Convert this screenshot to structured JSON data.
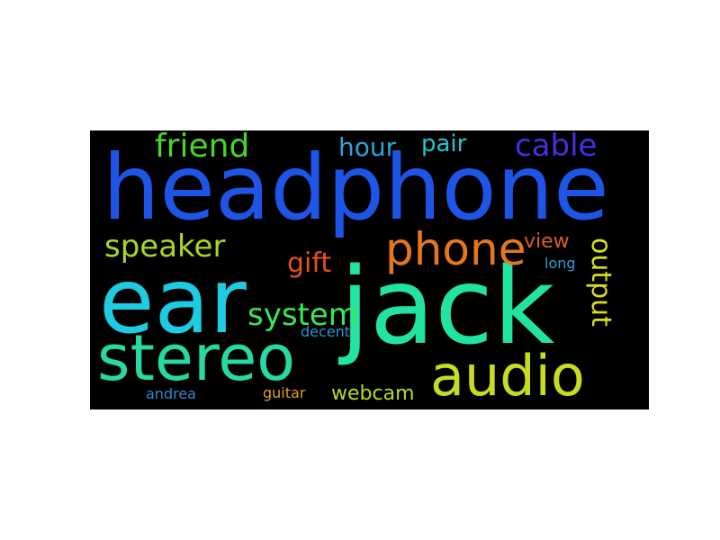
{
  "background_color": "#000000",
  "words": [
    {
      "text": "headphone",
      "color": "#1f55e6"
    },
    {
      "text": "ear",
      "color": "#1ecbe1"
    },
    {
      "text": "jack",
      "color": "#23e3a0"
    },
    {
      "text": "stereo",
      "color": "#27d9a4"
    },
    {
      "text": "audio",
      "color": "#c6dc23"
    },
    {
      "text": "phone",
      "color": "#e6761d"
    },
    {
      "text": "speaker",
      "color": "#a6d62a"
    },
    {
      "text": "friend",
      "color": "#47d62c"
    },
    {
      "text": "cable",
      "color": "#4a2de0"
    },
    {
      "text": "system",
      "color": "#3ae65a"
    },
    {
      "text": "output",
      "color": "#d7dd22"
    },
    {
      "text": "gift",
      "color": "#e25124"
    },
    {
      "text": "hour",
      "color": "#2ba6d8"
    },
    {
      "text": "pair",
      "color": "#24c4cf"
    },
    {
      "text": "view",
      "color": "#de5a29"
    },
    {
      "text": "webcam",
      "color": "#b8d827"
    },
    {
      "text": "long",
      "color": "#2b9fd8"
    },
    {
      "text": "decent",
      "color": "#2a95d6"
    },
    {
      "text": "andrea",
      "color": "#2e88d4"
    },
    {
      "text": "guitar",
      "color": "#de9e21"
    }
  ]
}
